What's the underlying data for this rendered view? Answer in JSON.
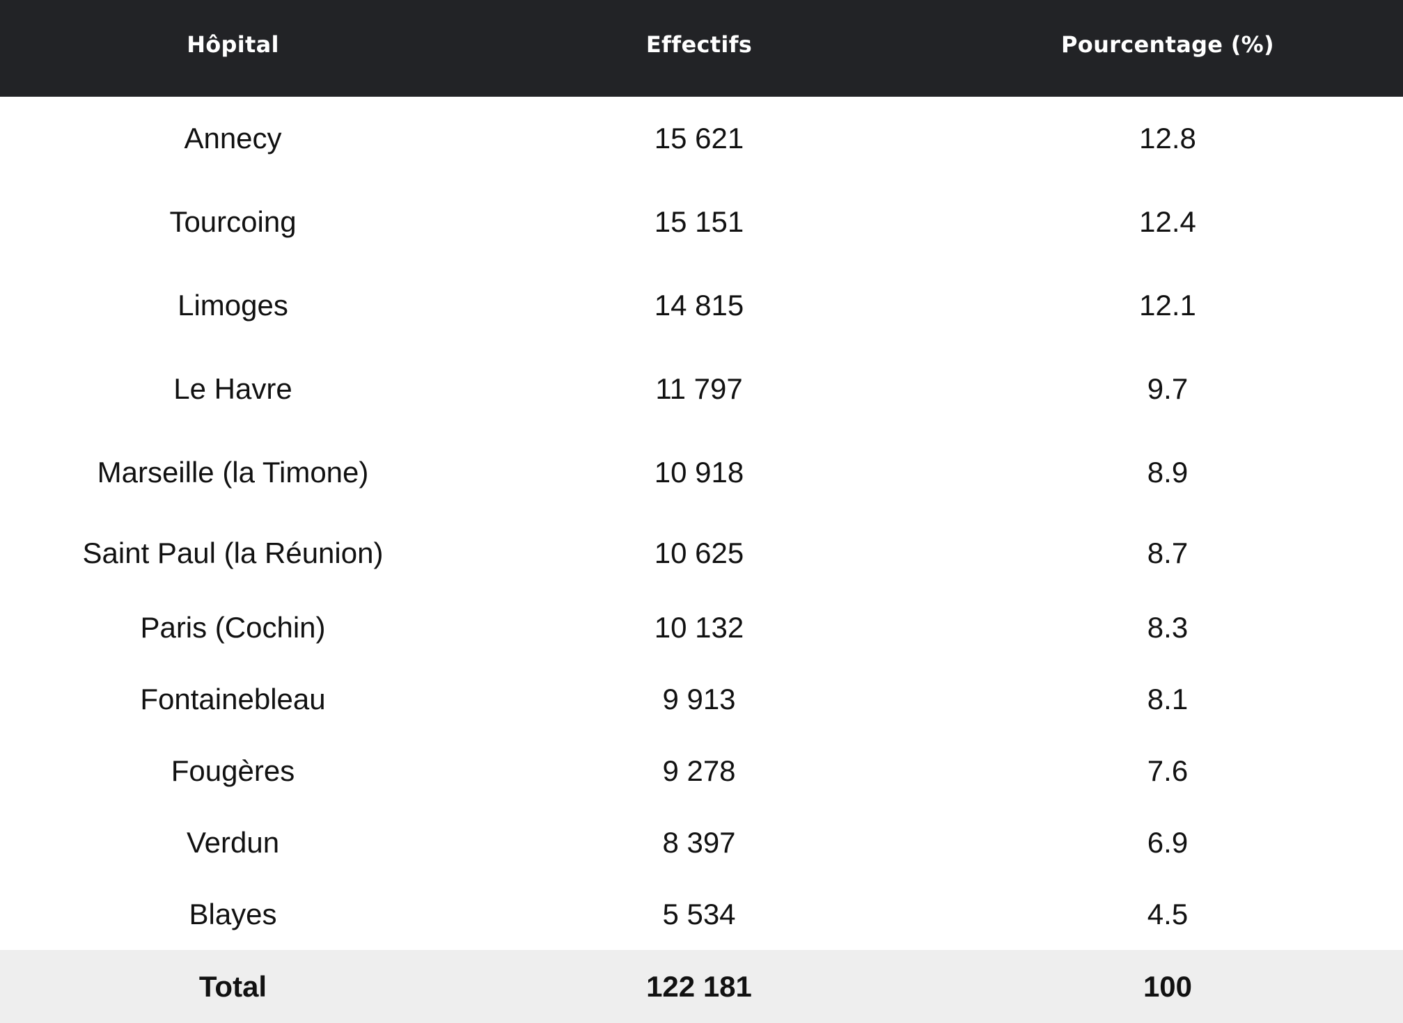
{
  "table": {
    "headers": {
      "hopital": "Hôpital",
      "effectifs": "Effectifs",
      "pourcentage": "Pourcentage (%)"
    },
    "rows": [
      {
        "hopital": "Annecy",
        "effectifs": "15 621",
        "pourcentage": "12.8"
      },
      {
        "hopital": "Tourcoing",
        "effectifs": "15 151",
        "pourcentage": "12.4"
      },
      {
        "hopital": "Limoges",
        "effectifs": "14 815",
        "pourcentage": "12.1"
      },
      {
        "hopital": "Le Havre",
        "effectifs": "11 797",
        "pourcentage": "9.7"
      },
      {
        "hopital": "Marseille (la Timone)",
        "effectifs": "10 918",
        "pourcentage": "8.9"
      },
      {
        "hopital": "Saint Paul (la Réunion)",
        "effectifs": "10 625",
        "pourcentage": "8.7"
      },
      {
        "hopital": "Paris (Cochin)",
        "effectifs": "10 132",
        "pourcentage": "8.3"
      },
      {
        "hopital": "Fontainebleau",
        "effectifs": "9 913",
        "pourcentage": "8.1"
      },
      {
        "hopital": "Fougères",
        "effectifs": "9 278",
        "pourcentage": "7.6"
      },
      {
        "hopital": "Verdun",
        "effectifs": "8 397",
        "pourcentage": "6.9"
      },
      {
        "hopital": "Blayes",
        "effectifs": "5 534",
        "pourcentage": "4.5"
      }
    ],
    "total": {
      "hopital": "Total",
      "effectifs": "122 181",
      "pourcentage": "100"
    }
  },
  "colors": {
    "header_bg": "#222326",
    "header_text": "#ffffff",
    "total_bg": "#eeeeee",
    "text": "#111111"
  }
}
